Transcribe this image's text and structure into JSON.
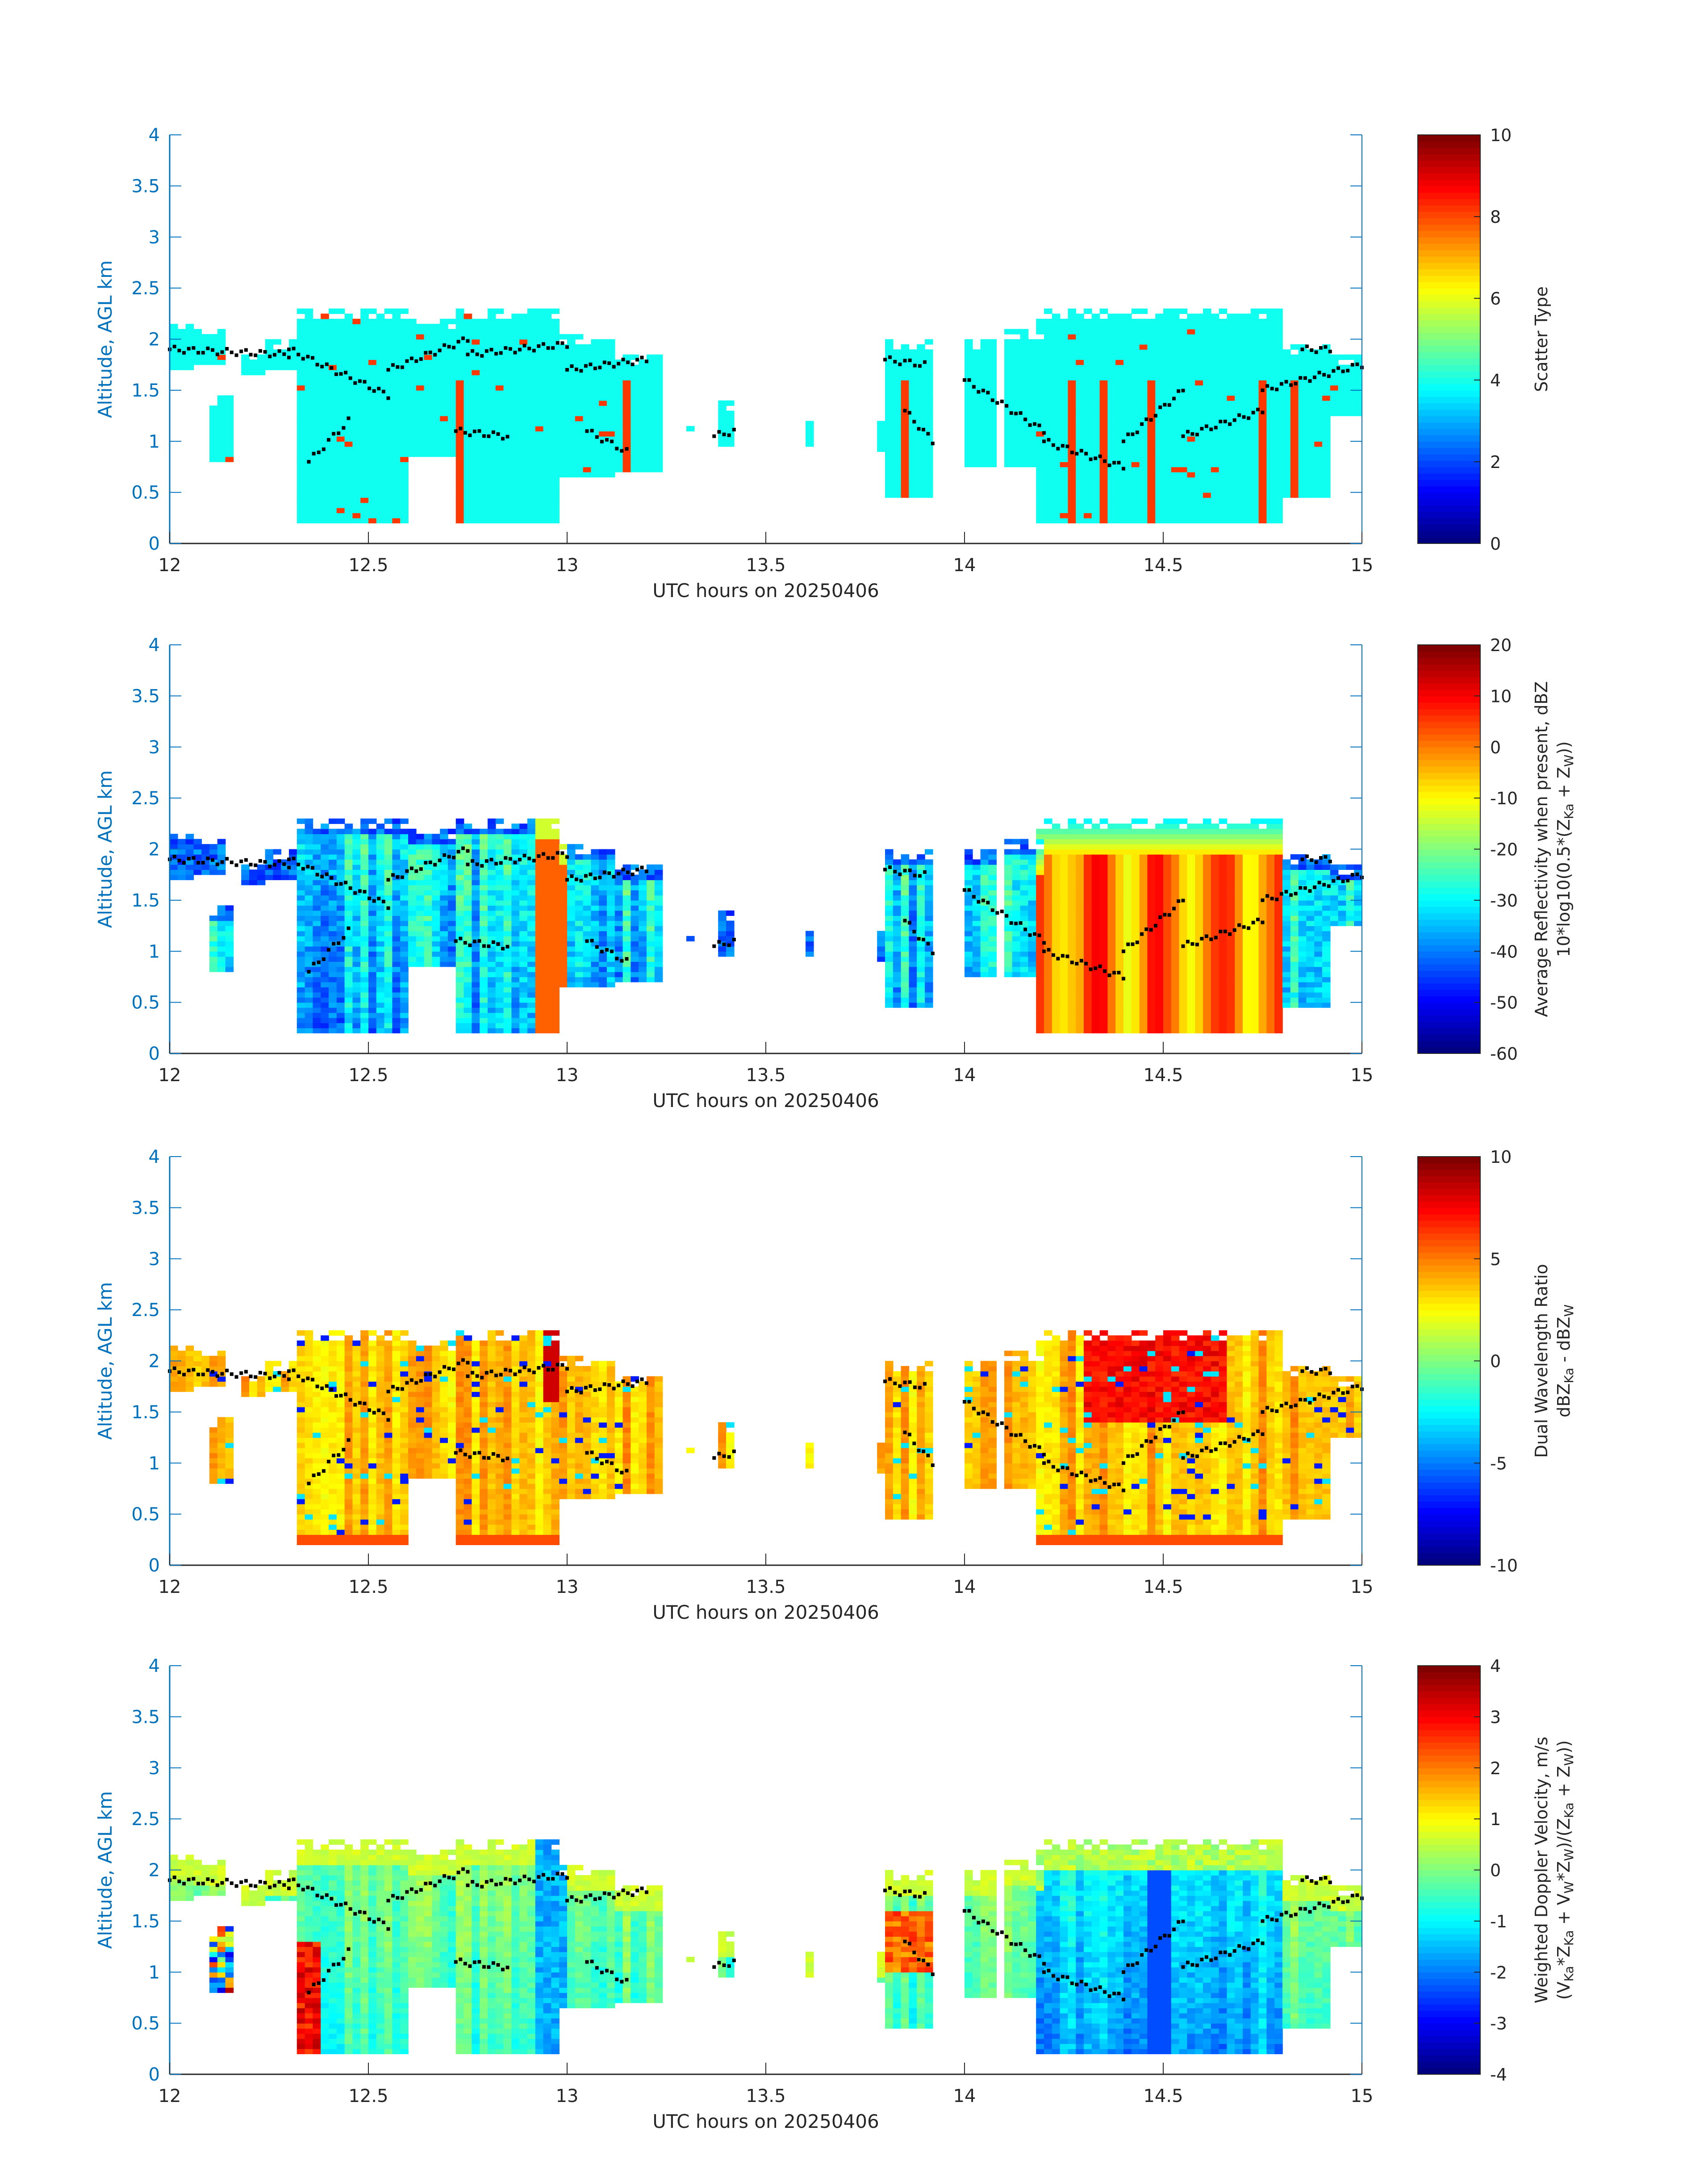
{
  "figure": {
    "date_label": "20250406",
    "colors": {
      "axis_blue": "#0072bd",
      "text_dark": "#262626",
      "dot": "#000000"
    }
  },
  "chart_data": [
    {
      "type": "heatmap",
      "xlabel": "UTC hours on 20250406",
      "ylabel": "Altitude, AGL km",
      "xlim": [
        12,
        15
      ],
      "ylim": [
        0,
        4
      ],
      "xticks": [
        "12",
        "12.5",
        "13",
        "13.5",
        "14",
        "14.5",
        "15"
      ],
      "yticks": [
        "0",
        "0.5",
        "1",
        "1.5",
        "2",
        "2.5",
        "3",
        "3.5",
        "4"
      ],
      "colorbar": {
        "label": "Scatter Type",
        "label2": "",
        "range": [
          0,
          10
        ],
        "ticks": [
          "0",
          "2",
          "4",
          "6",
          "8",
          "10"
        ]
      },
      "field": "scatter",
      "colormap": "jet"
    },
    {
      "type": "heatmap",
      "xlabel": "UTC hours on 20250406",
      "ylabel": "Altitude, AGL km",
      "xlim": [
        12,
        15
      ],
      "ylim": [
        0,
        4
      ],
      "xticks": [
        "12",
        "12.5",
        "13",
        "13.5",
        "14",
        "14.5",
        "15"
      ],
      "yticks": [
        "0",
        "0.5",
        "1",
        "1.5",
        "2",
        "2.5",
        "3",
        "3.5",
        "4"
      ],
      "colorbar": {
        "label": "Average Reflectivity when present, dBZ",
        "label2": "10*log10(0.5*(Z",
        "label2_sub1": "Ka",
        "label2_mid": " + Z",
        "label2_sub2": "W",
        "label2_end": "))",
        "range": [
          -60,
          20
        ],
        "ticks": [
          "-60",
          "-50",
          "-40",
          "-30",
          "-20",
          "-10",
          "0",
          "10",
          "20"
        ]
      },
      "field": "reflectivity",
      "colormap": "jet"
    },
    {
      "type": "heatmap",
      "xlabel": "UTC hours on 20250406",
      "ylabel": "Altitude, AGL km",
      "xlim": [
        12,
        15
      ],
      "ylim": [
        0,
        4
      ],
      "xticks": [
        "12",
        "12.5",
        "13",
        "13.5",
        "14",
        "14.5",
        "15"
      ],
      "yticks": [
        "0",
        "0.5",
        "1",
        "1.5",
        "2",
        "2.5",
        "3",
        "3.5",
        "4"
      ],
      "colorbar": {
        "label": "Dual Wavelength Ratio",
        "label2": "dBZ",
        "label2_sub1": "Ka",
        "label2_mid": " - dBZ",
        "label2_sub2": "W",
        "label2_end": "",
        "range": [
          -10,
          10
        ],
        "ticks": [
          "-10",
          "-5",
          "0",
          "5",
          "10"
        ]
      },
      "field": "dwr",
      "colormap": "jet"
    },
    {
      "type": "heatmap",
      "xlabel": "UTC hours on 20250406",
      "ylabel": "Altitude, AGL km",
      "xlim": [
        12,
        15
      ],
      "ylim": [
        0,
        4
      ],
      "xticks": [
        "12",
        "12.5",
        "13",
        "13.5",
        "14",
        "14.5",
        "15"
      ],
      "yticks": [
        "0",
        "0.5",
        "1",
        "1.5",
        "2",
        "2.5",
        "3",
        "3.5",
        "4"
      ],
      "colorbar": {
        "label": "Weighted Doppler Velocity, m/s",
        "label2": "(V",
        "label2_sub1": "Ka",
        "label2_mid": "*Z",
        "label2_sub2": "Ka",
        "label2_end": " + V",
        "label2_sub3": "W",
        "label2_mid2": "*Z",
        "label2_sub4": "W",
        "label2_end2": ")/(Z",
        "label2_sub5": "Ka",
        "label2_mid3": " + Z",
        "label2_sub6": "W",
        "label2_end3": "))",
        "range": [
          -4,
          4
        ],
        "ticks": [
          "-4",
          "-3",
          "-2",
          "-1",
          "0",
          "1",
          "2",
          "3",
          "4"
        ]
      },
      "field": "velocity",
      "colormap": "jet"
    }
  ],
  "echo_regions": [
    {
      "t0": 12.0,
      "t1": 12.05,
      "base": 1.7,
      "top": 2.15
    },
    {
      "t0": 12.05,
      "t1": 12.13,
      "base": 1.75,
      "top": 2.1
    },
    {
      "t0": 12.09,
      "t1": 12.15,
      "base": 0.8,
      "top": 1.45
    },
    {
      "t0": 12.18,
      "t1": 12.23,
      "base": 1.65,
      "top": 1.85
    },
    {
      "t0": 12.24,
      "t1": 12.32,
      "base": 1.7,
      "top": 2.0
    },
    {
      "t0": 12.31,
      "t1": 12.6,
      "base": 0.2,
      "top": 2.3
    },
    {
      "t0": 12.6,
      "t1": 12.72,
      "base": 0.85,
      "top": 2.2
    },
    {
      "t0": 12.72,
      "t1": 12.98,
      "base": 0.2,
      "top": 2.3
    },
    {
      "t0": 12.98,
      "t1": 13.12,
      "base": 0.65,
      "top": 2.05
    },
    {
      "t0": 13.12,
      "t1": 13.23,
      "base": 0.7,
      "top": 1.85
    },
    {
      "t0": 13.29,
      "t1": 13.31,
      "base": 1.1,
      "top": 1.2
    },
    {
      "t0": 13.37,
      "t1": 13.42,
      "base": 0.95,
      "top": 1.4
    },
    {
      "t0": 13.6,
      "t1": 13.62,
      "base": 0.95,
      "top": 1.2
    },
    {
      "t0": 13.77,
      "t1": 13.79,
      "base": 0.9,
      "top": 1.2
    },
    {
      "t0": 13.8,
      "t1": 13.92,
      "base": 0.45,
      "top": 2.0
    },
    {
      "t0": 13.99,
      "t1": 14.08,
      "base": 0.75,
      "top": 2.0
    },
    {
      "t0": 14.1,
      "t1": 14.2,
      "base": 0.75,
      "top": 2.1
    },
    {
      "t0": 14.18,
      "t1": 14.8,
      "base": 0.2,
      "top": 2.3
    },
    {
      "t0": 14.8,
      "t1": 14.92,
      "base": 0.45,
      "top": 1.95
    },
    {
      "t0": 14.92,
      "t1": 15.0,
      "base": 1.25,
      "top": 1.85
    }
  ],
  "dot_tracks": [
    {
      "t0": 12.0,
      "t1": 12.3,
      "h0": 1.9,
      "h1": 1.85
    },
    {
      "t0": 12.3,
      "t1": 12.55,
      "h0": 1.9,
      "h1": 1.45
    },
    {
      "t0": 12.55,
      "t1": 12.75,
      "h0": 1.7,
      "h1": 2.0
    },
    {
      "t0": 12.75,
      "t1": 13.0,
      "h0": 1.85,
      "h1": 1.95
    },
    {
      "t0": 13.0,
      "t1": 13.2,
      "h0": 1.7,
      "h1": 1.8
    },
    {
      "t0": 12.35,
      "t1": 12.45,
      "h0": 0.8,
      "h1": 1.2
    },
    {
      "t0": 12.72,
      "t1": 12.85,
      "h0": 1.1,
      "h1": 1.05
    },
    {
      "t0": 13.05,
      "t1": 13.15,
      "h0": 1.1,
      "h1": 0.9
    },
    {
      "t0": 13.37,
      "t1": 13.42,
      "h0": 1.05,
      "h1": 1.1
    },
    {
      "t0": 13.8,
      "t1": 13.9,
      "h0": 1.8,
      "h1": 1.75
    },
    {
      "t0": 13.85,
      "t1": 13.92,
      "h0": 1.3,
      "h1": 1.0
    },
    {
      "t0": 14.0,
      "t1": 14.2,
      "h0": 1.6,
      "h1": 1.1
    },
    {
      "t0": 14.2,
      "t1": 14.4,
      "h0": 1.0,
      "h1": 0.75
    },
    {
      "t0": 14.4,
      "t1": 14.55,
      "h0": 1.0,
      "h1": 1.5
    },
    {
      "t0": 14.55,
      "t1": 14.75,
      "h0": 1.05,
      "h1": 1.3
    },
    {
      "t0": 14.75,
      "t1": 15.0,
      "h0": 1.5,
      "h1": 1.75
    },
    {
      "t0": 14.85,
      "t1": 14.92,
      "h0": 1.9,
      "h1": 1.9
    }
  ]
}
